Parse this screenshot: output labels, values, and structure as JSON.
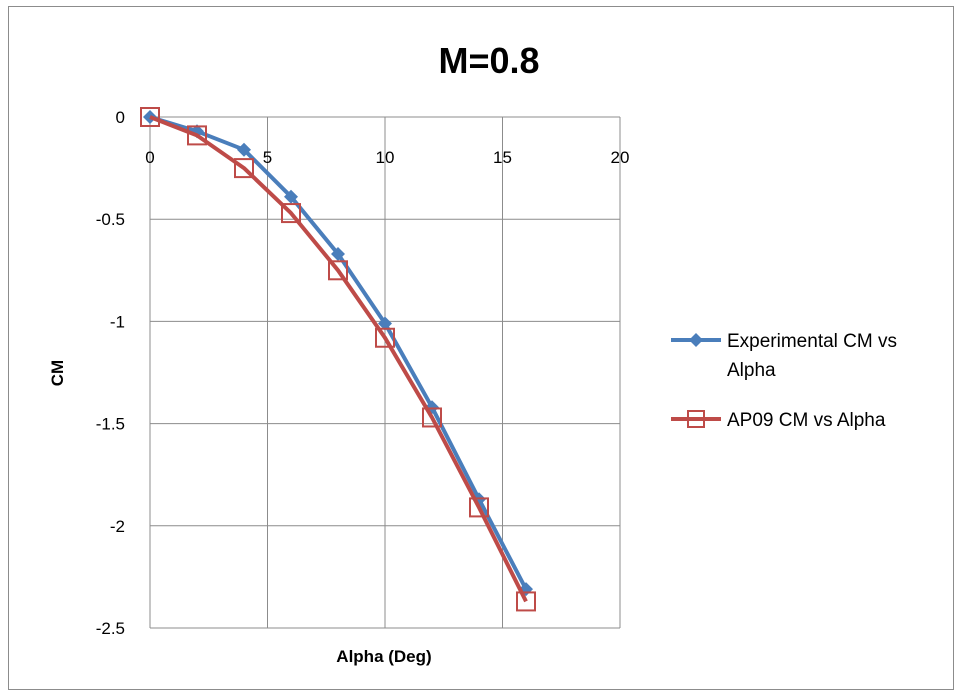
{
  "chart_data": {
    "type": "line",
    "title": "M=0.8",
    "xlabel": "Alpha (Deg)",
    "ylabel": "CM",
    "xlim": [
      0,
      20
    ],
    "ylim": [
      -2.5,
      0
    ],
    "xticks": [
      "0",
      "5",
      "10",
      "15",
      "20"
    ],
    "yticks": [
      "0",
      "-0.5",
      "-1",
      "-1.5",
      "-2",
      "-2.5"
    ],
    "grid": true,
    "legend_position": "right",
    "series": [
      {
        "name": "Experimental CM vs Alpha",
        "color": "#4a7ebb",
        "marker": "diamond",
        "x": [
          0,
          2,
          4,
          6,
          8,
          10,
          12,
          14,
          16
        ],
        "y": [
          0,
          -0.07,
          -0.16,
          -0.39,
          -0.67,
          -1.01,
          -1.42,
          -1.87,
          -2.31
        ]
      },
      {
        "name": "AP09 CM vs Alpha",
        "color": "#be4b48",
        "marker": "square-open",
        "x": [
          0,
          2,
          4,
          6,
          8,
          10,
          12,
          14,
          16
        ],
        "y": [
          0,
          -0.09,
          -0.25,
          -0.47,
          -0.75,
          -1.08,
          -1.47,
          -1.91,
          -2.37
        ]
      }
    ]
  }
}
